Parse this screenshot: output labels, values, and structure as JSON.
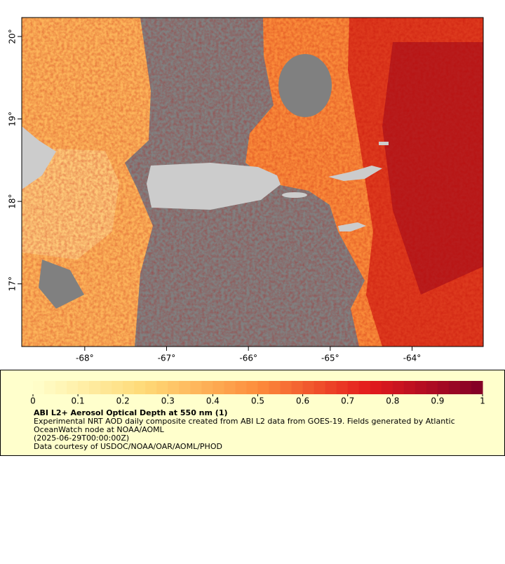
{
  "map": {
    "xlim": [
      -68.77,
      -63.13
    ],
    "ylim": [
      16.24,
      20.23
    ],
    "xticks": [
      {
        "value": -68,
        "label": "-68°"
      },
      {
        "value": -67,
        "label": "-67°"
      },
      {
        "value": -66,
        "label": "-66°"
      },
      {
        "value": -65,
        "label": "-65°"
      },
      {
        "value": -64,
        "label": "-64°"
      }
    ],
    "yticks": [
      {
        "value": 17,
        "label": "17°"
      },
      {
        "value": 18,
        "label": "18°"
      },
      {
        "value": 19,
        "label": "19°"
      },
      {
        "value": 20,
        "label": "20°"
      }
    ]
  },
  "legend": {
    "lim": [
      0,
      1
    ],
    "ticks": [
      0,
      {
        "value": 0.1,
        "label": "0.1"
      },
      {
        "value": 0.2,
        "label": "0.2"
      },
      {
        "value": 0.3,
        "label": "0.3"
      },
      {
        "value": 0.4,
        "label": "0.4"
      },
      {
        "value": 0.5,
        "label": "0.5"
      },
      {
        "value": 0.6,
        "label": "0.6"
      },
      {
        "value": 0.7,
        "label": "0.7"
      },
      {
        "value": 0.8,
        "label": "0.8"
      },
      {
        "value": 0.9,
        "label": "0.9"
      },
      1
    ],
    "title": "ABI L2+ Aerosol Optical Depth at 550 nm (1)",
    "lines": [
      "Experimental NRT AOD daily composite created from ABI L2 data from GOES-19. Fields generated by Atlantic",
      "OceanWatch node at NOAA/AOML",
      "(2025-06-29T00:00:00Z)",
      "Data courtesy of USDOC/NOAA/OAR/AOML/PHOD"
    ]
  }
}
